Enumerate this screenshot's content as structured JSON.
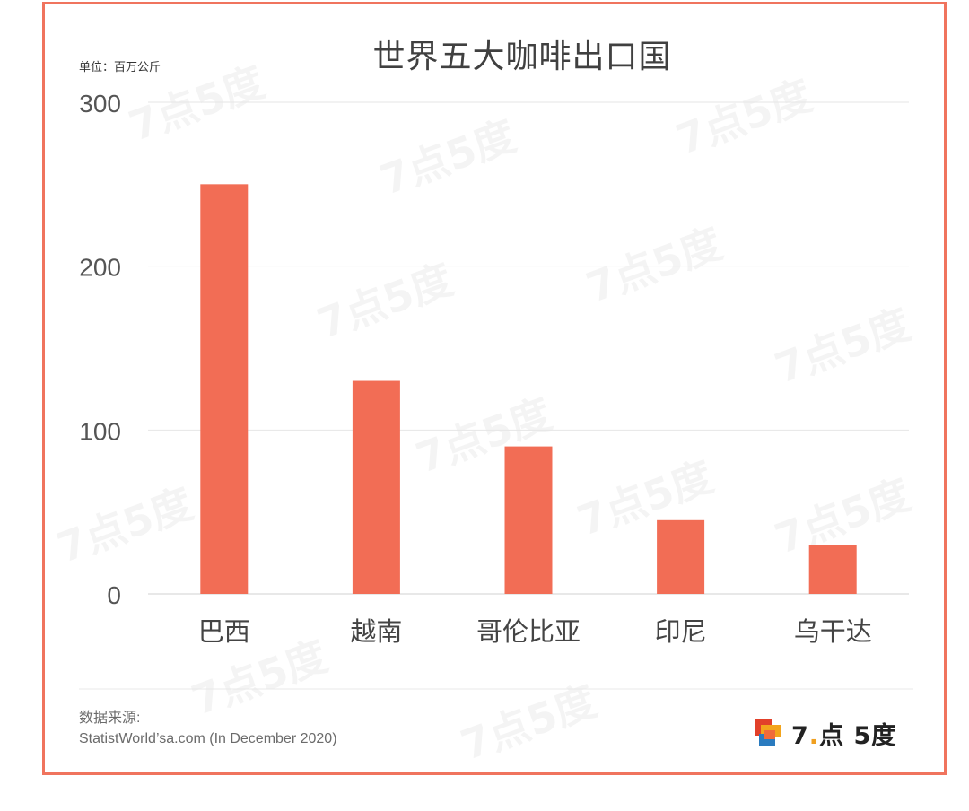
{
  "chart_data": {
    "type": "bar",
    "title": "世界五大咖啡出口国",
    "unit_label": "单位：百万公斤",
    "categories": [
      "巴西",
      "越南",
      "哥伦比亚",
      "印尼",
      "乌干达"
    ],
    "values": [
      250,
      130,
      90,
      45,
      30
    ],
    "ylim": [
      0,
      300
    ],
    "yticks": [
      "0",
      "100",
      "200",
      "300"
    ],
    "grid": true,
    "bar_color": "#f26d55"
  },
  "source": {
    "label": "数据来源:",
    "text": "StatistWorld’sa.com (In December 2020)"
  },
  "brand": {
    "name_part1": "7",
    "name_dot": ".",
    "name_part2": "点 5度"
  },
  "watermark": {
    "text": "7点5度"
  },
  "colors": {
    "border": "#f0745e",
    "bar": "#f26d55",
    "grid": "#e6e6e6"
  }
}
